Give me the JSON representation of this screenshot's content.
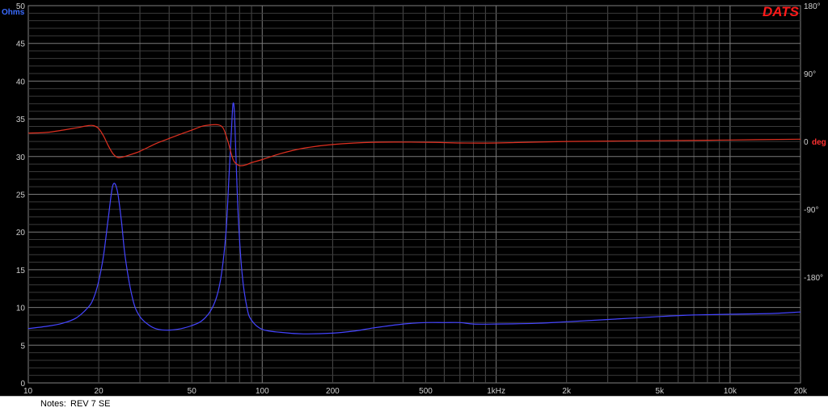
{
  "chart_data": {
    "type": "line",
    "brand": "DATS",
    "x_scale": "log",
    "xlim": [
      10,
      20000
    ],
    "x_tick_labels": [
      {
        "value": 10,
        "label": "10"
      },
      {
        "value": 20,
        "label": "20"
      },
      {
        "value": 50,
        "label": "50"
      },
      {
        "value": 100,
        "label": "100"
      },
      {
        "value": 200,
        "label": "200"
      },
      {
        "value": 500,
        "label": "500"
      },
      {
        "value": 1000,
        "label": "1kHz"
      },
      {
        "value": 2000,
        "label": "2k"
      },
      {
        "value": 5000,
        "label": "5k"
      },
      {
        "value": 10000,
        "label": "10k"
      },
      {
        "value": 20000,
        "label": "20k"
      }
    ],
    "y_left": {
      "unit": "Ohms",
      "ylim": [
        0,
        50
      ],
      "ticks": [
        0,
        5,
        10,
        15,
        20,
        25,
        30,
        35,
        40,
        45,
        50
      ]
    },
    "y_right": {
      "unit": "deg",
      "ylim": [
        -320,
        180
      ],
      "ticks": [
        {
          "value": 180,
          "label": "180°"
        },
        {
          "value": 90,
          "label": "90°"
        },
        {
          "value": 0,
          "label": "0"
        },
        {
          "value": -90,
          "label": "-90°"
        },
        {
          "value": -180,
          "label": "-180°"
        }
      ]
    },
    "grid": true,
    "series": [
      {
        "axis": "left",
        "color": "#4444ff",
        "points": [
          [
            10,
            7.2
          ],
          [
            12,
            7.5
          ],
          [
            14,
            7.9
          ],
          [
            16,
            8.6
          ],
          [
            18,
            10.0
          ],
          [
            19,
            11.2
          ],
          [
            20,
            13.5
          ],
          [
            21,
            17.0
          ],
          [
            22,
            22.0
          ],
          [
            23,
            26.2
          ],
          [
            24,
            25.5
          ],
          [
            25,
            21.5
          ],
          [
            26,
            16.5
          ],
          [
            28,
            11.0
          ],
          [
            30,
            8.8
          ],
          [
            33,
            7.6
          ],
          [
            36,
            7.1
          ],
          [
            40,
            7.0
          ],
          [
            45,
            7.2
          ],
          [
            50,
            7.6
          ],
          [
            55,
            8.2
          ],
          [
            60,
            9.5
          ],
          [
            64,
            11.5
          ],
          [
            67,
            14.5
          ],
          [
            70,
            20.0
          ],
          [
            72,
            27.0
          ],
          [
            74,
            34.0
          ],
          [
            75,
            37.0
          ],
          [
            76,
            36.0
          ],
          [
            77,
            31.0
          ],
          [
            79,
            22.0
          ],
          [
            82,
            14.5
          ],
          [
            86,
            10.0
          ],
          [
            90,
            8.3
          ],
          [
            100,
            7.1
          ],
          [
            120,
            6.7
          ],
          [
            150,
            6.5
          ],
          [
            200,
            6.6
          ],
          [
            250,
            6.9
          ],
          [
            300,
            7.3
          ],
          [
            400,
            7.8
          ],
          [
            500,
            8.0
          ],
          [
            600,
            8.0
          ],
          [
            700,
            8.0
          ],
          [
            800,
            7.8
          ],
          [
            1000,
            7.8
          ],
          [
            1500,
            7.9
          ],
          [
            2000,
            8.1
          ],
          [
            3000,
            8.4
          ],
          [
            5000,
            8.8
          ],
          [
            7000,
            9.0
          ],
          [
            10000,
            9.1
          ],
          [
            15000,
            9.2
          ],
          [
            20000,
            9.4
          ]
        ]
      },
      {
        "axis": "right",
        "color": "#e03020",
        "points": [
          [
            10,
            11
          ],
          [
            12,
            12
          ],
          [
            14,
            15
          ],
          [
            16,
            18
          ],
          [
            18,
            21
          ],
          [
            19,
            21
          ],
          [
            20,
            17
          ],
          [
            21,
            7
          ],
          [
            22,
            -6
          ],
          [
            23,
            -16
          ],
          [
            24,
            -21
          ],
          [
            25,
            -21
          ],
          [
            27,
            -18
          ],
          [
            30,
            -13
          ],
          [
            35,
            -3
          ],
          [
            40,
            4
          ],
          [
            45,
            10
          ],
          [
            50,
            15
          ],
          [
            55,
            20
          ],
          [
            60,
            22
          ],
          [
            65,
            22
          ],
          [
            68,
            18
          ],
          [
            70,
            8
          ],
          [
            72,
            -4
          ],
          [
            74,
            -18
          ],
          [
            76,
            -27
          ],
          [
            80,
            -32
          ],
          [
            85,
            -31
          ],
          [
            90,
            -28
          ],
          [
            100,
            -24
          ],
          [
            120,
            -16
          ],
          [
            150,
            -9
          ],
          [
            200,
            -4
          ],
          [
            300,
            -1
          ],
          [
            500,
            -1
          ],
          [
            700,
            -2
          ],
          [
            1000,
            -2
          ],
          [
            2000,
            0
          ],
          [
            5000,
            1
          ],
          [
            10000,
            2
          ],
          [
            20000,
            3
          ]
        ]
      }
    ]
  },
  "notes": {
    "label": "Notes:",
    "text": "REV 7 SE"
  }
}
